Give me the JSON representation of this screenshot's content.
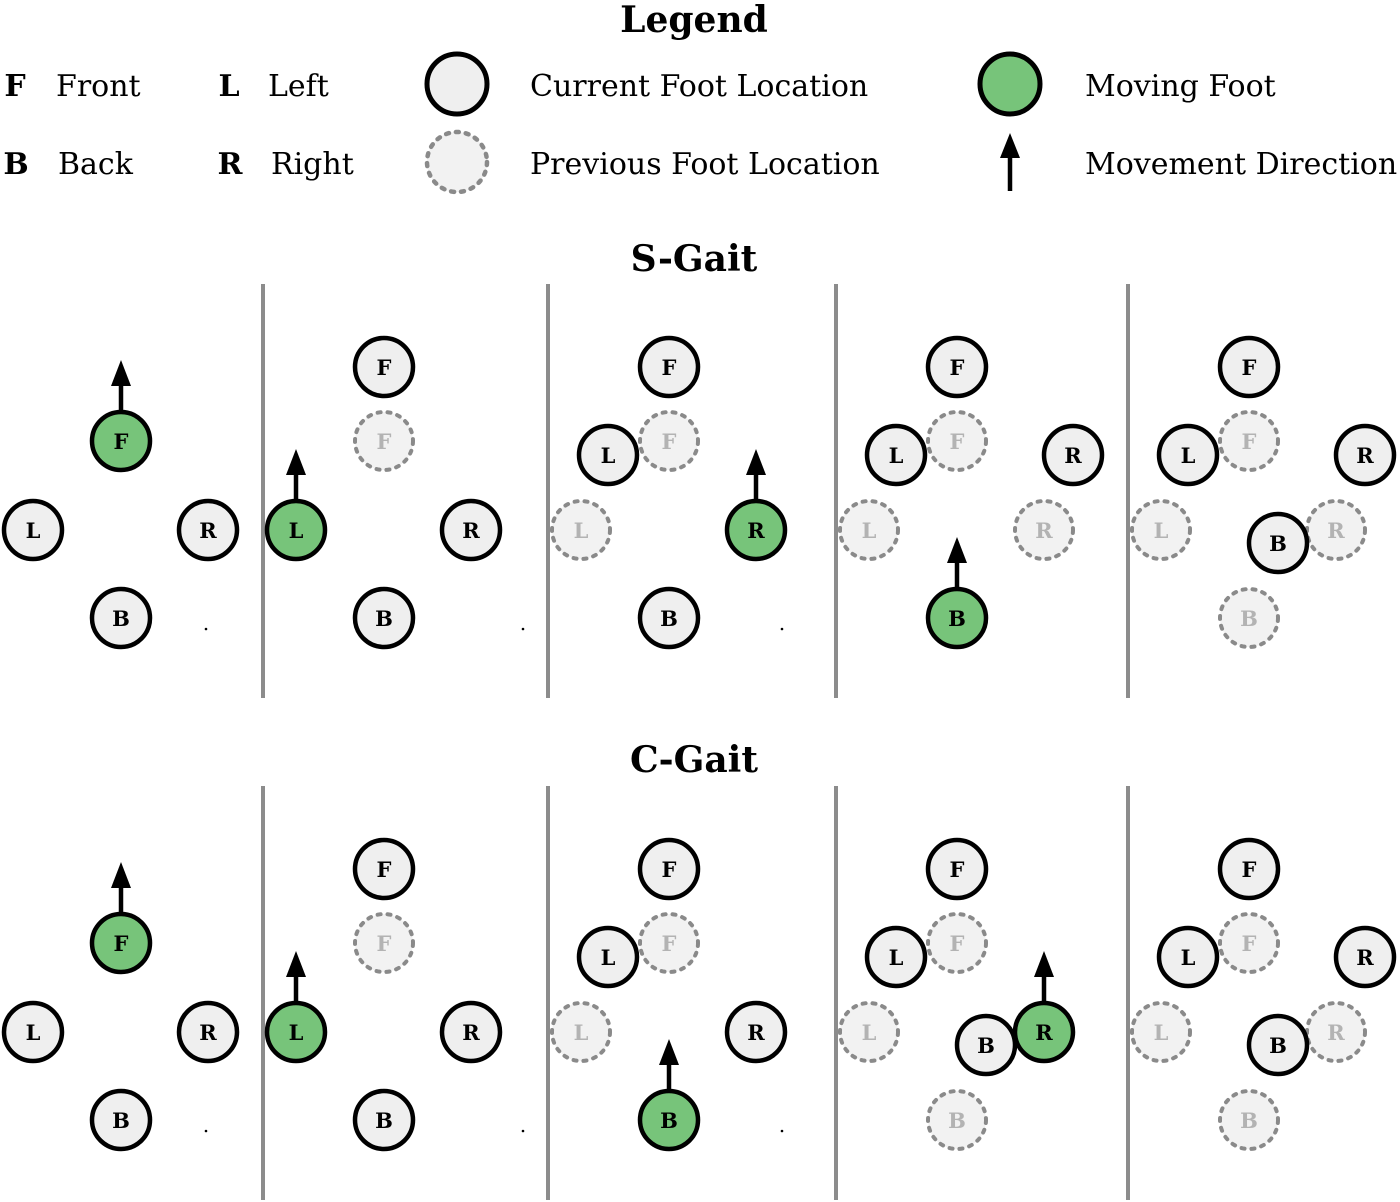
{
  "legend": {
    "title": "Legend",
    "keys": [
      {
        "letter": "F",
        "meaning": "Front"
      },
      {
        "letter": "B",
        "meaning": "Back"
      },
      {
        "letter": "L",
        "meaning": "Left"
      },
      {
        "letter": "R",
        "meaning": "Right"
      }
    ],
    "symbols": {
      "current": "Current Foot Location",
      "previous": "Previous Foot Location",
      "moving": "Moving Foot",
      "direction": "Movement Direction"
    }
  },
  "colors": {
    "current_fill": "#efefef",
    "moving_fill": "#77c47a",
    "previous_fill": "#f2f2f2",
    "previous_stroke": "#8a8a8a",
    "previous_text": "#b3b3b3",
    "divider": "#8c8c8c",
    "ink": "#000000"
  },
  "gaits": [
    {
      "title": "S-Gait",
      "panels": [
        {
          "feet": [
            {
              "label": "F",
              "state": "moving",
              "pos": "front-mid",
              "arrow": true
            },
            {
              "label": "L",
              "state": "current",
              "pos": "left"
            },
            {
              "label": "R",
              "state": "current",
              "pos": "right"
            },
            {
              "label": "B",
              "state": "current",
              "pos": "back"
            }
          ]
        },
        {
          "feet": [
            {
              "label": "F",
              "state": "current",
              "pos": "front-top"
            },
            {
              "label": "F",
              "state": "previous",
              "pos": "front-mid"
            },
            {
              "label": "L",
              "state": "moving",
              "pos": "left",
              "arrow": true
            },
            {
              "label": "R",
              "state": "current",
              "pos": "right"
            },
            {
              "label": "B",
              "state": "current",
              "pos": "back"
            }
          ]
        },
        {
          "feet": [
            {
              "label": "F",
              "state": "current",
              "pos": "front-top"
            },
            {
              "label": "F",
              "state": "previous",
              "pos": "front-mid"
            },
            {
              "label": "L",
              "state": "current",
              "pos": "left-up"
            },
            {
              "label": "L",
              "state": "previous",
              "pos": "left"
            },
            {
              "label": "R",
              "state": "moving",
              "pos": "right",
              "arrow": true
            },
            {
              "label": "B",
              "state": "current",
              "pos": "back"
            }
          ]
        },
        {
          "feet": [
            {
              "label": "F",
              "state": "current",
              "pos": "front-top"
            },
            {
              "label": "F",
              "state": "previous",
              "pos": "front-mid"
            },
            {
              "label": "L",
              "state": "current",
              "pos": "left-up"
            },
            {
              "label": "L",
              "state": "previous",
              "pos": "left"
            },
            {
              "label": "R",
              "state": "current",
              "pos": "right-up"
            },
            {
              "label": "R",
              "state": "previous",
              "pos": "right"
            },
            {
              "label": "B",
              "state": "moving",
              "pos": "back",
              "arrow": true
            }
          ]
        },
        {
          "feet": [
            {
              "label": "F",
              "state": "current",
              "pos": "front-top"
            },
            {
              "label": "F",
              "state": "previous",
              "pos": "front-mid"
            },
            {
              "label": "L",
              "state": "current",
              "pos": "left-up"
            },
            {
              "label": "L",
              "state": "previous",
              "pos": "left"
            },
            {
              "label": "R",
              "state": "current",
              "pos": "right-up"
            },
            {
              "label": "R",
              "state": "previous",
              "pos": "right"
            },
            {
              "label": "B",
              "state": "current",
              "pos": "back-up"
            },
            {
              "label": "B",
              "state": "previous",
              "pos": "back"
            }
          ]
        }
      ]
    },
    {
      "title": "C-Gait",
      "panels": [
        {
          "feet": [
            {
              "label": "F",
              "state": "moving",
              "pos": "front-mid",
              "arrow": true
            },
            {
              "label": "L",
              "state": "current",
              "pos": "left"
            },
            {
              "label": "R",
              "state": "current",
              "pos": "right"
            },
            {
              "label": "B",
              "state": "current",
              "pos": "back"
            }
          ]
        },
        {
          "feet": [
            {
              "label": "F",
              "state": "current",
              "pos": "front-top"
            },
            {
              "label": "F",
              "state": "previous",
              "pos": "front-mid"
            },
            {
              "label": "L",
              "state": "moving",
              "pos": "left",
              "arrow": true
            },
            {
              "label": "R",
              "state": "current",
              "pos": "right"
            },
            {
              "label": "B",
              "state": "current",
              "pos": "back"
            }
          ]
        },
        {
          "feet": [
            {
              "label": "F",
              "state": "current",
              "pos": "front-top"
            },
            {
              "label": "F",
              "state": "previous",
              "pos": "front-mid"
            },
            {
              "label": "L",
              "state": "current",
              "pos": "left-up"
            },
            {
              "label": "L",
              "state": "previous",
              "pos": "left"
            },
            {
              "label": "R",
              "state": "current",
              "pos": "right"
            },
            {
              "label": "B",
              "state": "moving",
              "pos": "back",
              "arrow": true
            }
          ]
        },
        {
          "feet": [
            {
              "label": "F",
              "state": "current",
              "pos": "front-top"
            },
            {
              "label": "F",
              "state": "previous",
              "pos": "front-mid"
            },
            {
              "label": "L",
              "state": "current",
              "pos": "left-up"
            },
            {
              "label": "L",
              "state": "previous",
              "pos": "left"
            },
            {
              "label": "B",
              "state": "current",
              "pos": "back-up"
            },
            {
              "label": "B",
              "state": "previous",
              "pos": "back"
            },
            {
              "label": "R",
              "state": "moving",
              "pos": "right",
              "arrow": true
            }
          ]
        },
        {
          "feet": [
            {
              "label": "F",
              "state": "current",
              "pos": "front-top"
            },
            {
              "label": "F",
              "state": "previous",
              "pos": "front-mid"
            },
            {
              "label": "L",
              "state": "current",
              "pos": "left-up"
            },
            {
              "label": "L",
              "state": "previous",
              "pos": "left"
            },
            {
              "label": "R",
              "state": "current",
              "pos": "right-up"
            },
            {
              "label": "R",
              "state": "previous",
              "pos": "right"
            },
            {
              "label": "B",
              "state": "current",
              "pos": "back-up"
            },
            {
              "label": "B",
              "state": "previous",
              "pos": "back"
            }
          ]
        }
      ]
    }
  ]
}
